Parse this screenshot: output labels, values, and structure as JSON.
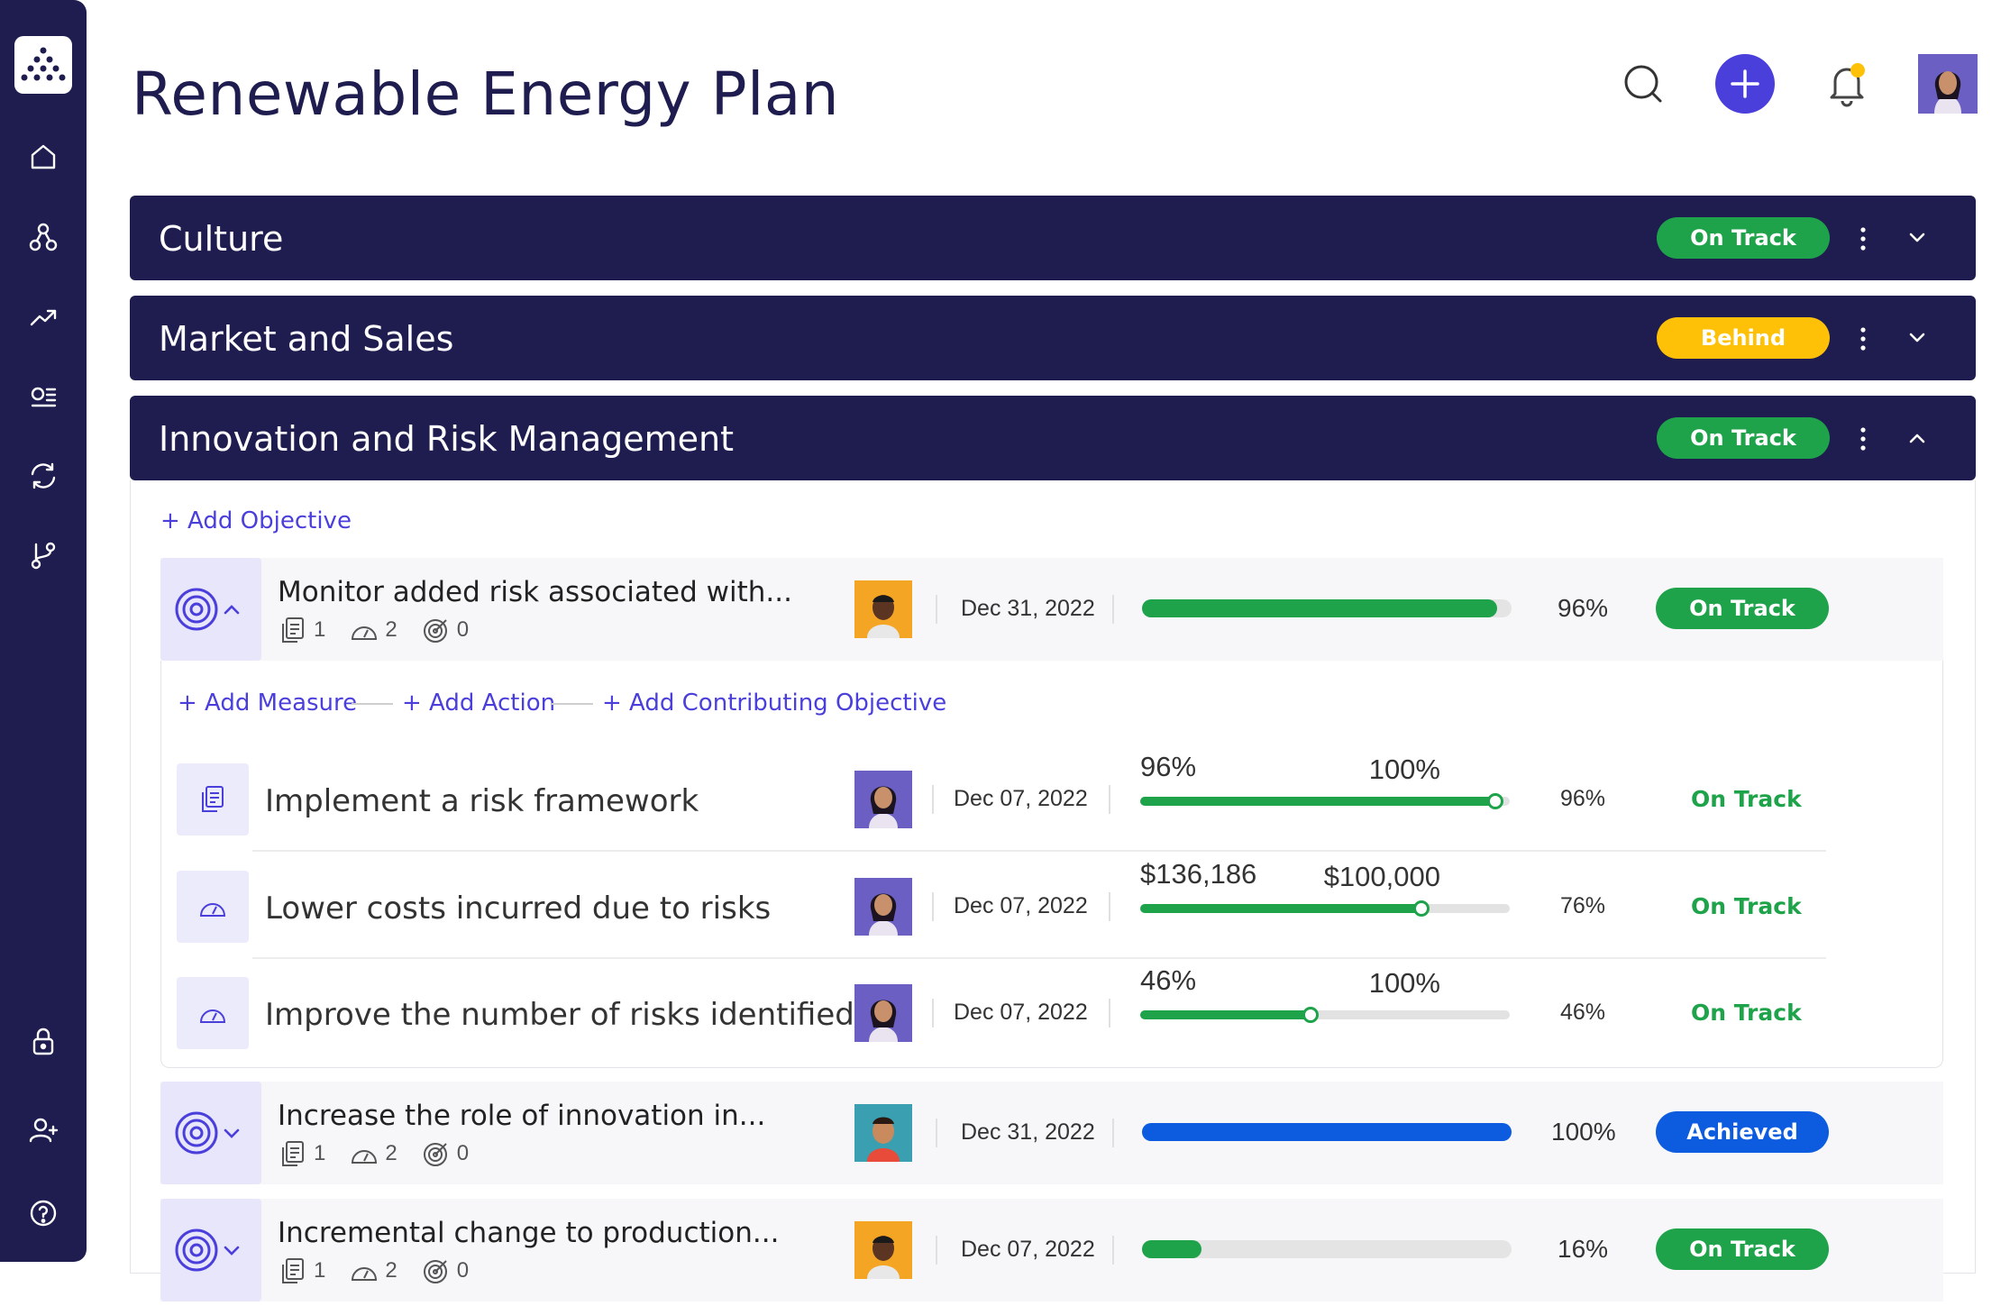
{
  "page": {
    "title": "Renewable Energy Plan"
  },
  "sidebar": {
    "items": [
      {
        "icon": "home-icon"
      },
      {
        "icon": "hierarchy-icon"
      },
      {
        "icon": "trending-up-icon"
      },
      {
        "icon": "list-icon"
      },
      {
        "icon": "sync-icon"
      },
      {
        "icon": "branch-icon"
      },
      {
        "icon": "lock-icon"
      },
      {
        "icon": "add-user-icon"
      },
      {
        "icon": "help-icon"
      }
    ]
  },
  "sections": [
    {
      "title": "Culture",
      "status": "On Track",
      "color": "#1ea34a"
    },
    {
      "title": "Market and Sales",
      "status": "Behind",
      "color": "#ffc107"
    },
    {
      "title": "Innovation and Risk Management",
      "status": "On Track",
      "color": "#1ea34a"
    }
  ],
  "links": {
    "add_objective": "+ Add Objective",
    "add_measure": "+ Add Measure",
    "add_action": "+ Add Action",
    "add_contributing": "+ Add Contributing Objective"
  },
  "objectives": [
    {
      "title": "Monitor added risk associated with...",
      "measures": "1",
      "actions": "2",
      "contributing": "0",
      "date": "Dec 31, 2022",
      "progress": 0.96,
      "pct": "96%",
      "status": "On Track",
      "bar_color": "#1ea34a"
    },
    {
      "title": "Increase the role of innovation in...",
      "measures": "1",
      "actions": "2",
      "contributing": "0",
      "date": "Dec 31, 2022",
      "progress": 1.0,
      "pct": "100%",
      "status": "Achieved",
      "bar_color": "#0d5ce0"
    },
    {
      "title": "Incremental change to production...",
      "measures": "1",
      "actions": "2",
      "contributing": "0",
      "date": "Dec 07, 2022",
      "progress": 0.16,
      "pct": "16%",
      "status": "On Track",
      "bar_color": "#1ea34a"
    }
  ],
  "measures": [
    {
      "title": "Implement a risk framework",
      "date": "Dec 07, 2022",
      "current": "96%",
      "target": "100%",
      "progress": 0.96,
      "pct": "96%",
      "status": "On Track",
      "icon": "document-icon"
    },
    {
      "title": "Lower costs incurred due to risks",
      "date": "Dec 07, 2022",
      "current": "$136,186",
      "target": "$100,000",
      "progress": 0.76,
      "pct": "76%",
      "status": "On Track",
      "icon": "gauge-icon"
    },
    {
      "title": "Improve the number of risks identified",
      "date": "Dec 07, 2022",
      "current": "46%",
      "target": "100%",
      "progress": 0.46,
      "pct": "46%",
      "status": "On Track",
      "icon": "gauge-icon"
    }
  ]
}
